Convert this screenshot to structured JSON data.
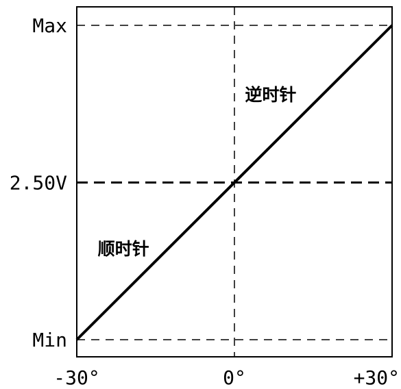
{
  "colors": {
    "background": "#ffffff",
    "line": "#000000"
  },
  "chart_data": {
    "type": "line",
    "title": "",
    "xlabel": "",
    "ylabel": "",
    "xlim": [
      -30,
      30
    ],
    "ylim": [
      0,
      1
    ],
    "x_ticks": [
      {
        "value": -30,
        "label": "-30°"
      },
      {
        "value": 0,
        "label": "0°"
      },
      {
        "value": 30,
        "label": "+30°"
      }
    ],
    "y_ticks": [
      {
        "value": 0,
        "label": "Min"
      },
      {
        "value": 0.5,
        "label": "2.50V"
      },
      {
        "value": 1,
        "label": "Max"
      }
    ],
    "reference_lines": [
      {
        "axis": "y",
        "value": 0,
        "style": "dashed"
      },
      {
        "axis": "y",
        "value": 0.5,
        "style": "dashed-bold"
      },
      {
        "axis": "y",
        "value": 1,
        "style": "dashed"
      },
      {
        "axis": "x",
        "value": 0,
        "style": "dashed"
      }
    ],
    "series": [
      {
        "x": [
          -30,
          30
        ],
        "y": [
          0,
          1
        ]
      }
    ],
    "annotations": [
      {
        "text": "逆时针",
        "x": 2,
        "y": 0.78
      },
      {
        "text": "顺时针",
        "x": -26,
        "y": 0.29
      }
    ],
    "grid": false,
    "legend": "none"
  }
}
